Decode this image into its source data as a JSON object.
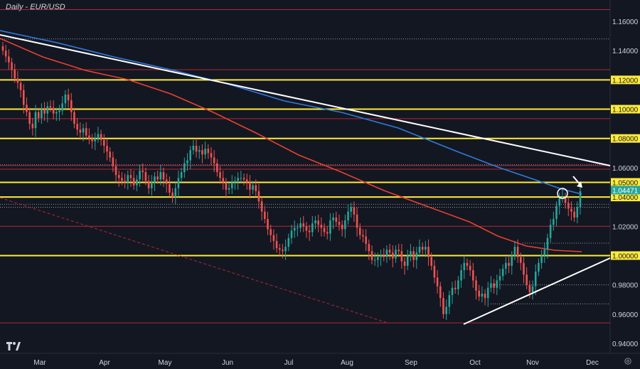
{
  "chart_data": {
    "type": "candlestick",
    "title": "Daily - EUR/USD",
    "y_ticks": [
      "1.16000",
      "1.14000",
      "1.12000",
      "1.10000",
      "1.08000",
      "1.06000",
      "1.05000",
      "1.04000",
      "1.02000",
      "1.00000",
      "0.98000",
      "0.96000",
      "0.94000"
    ],
    "highlighted_y_ticks": [
      "1.12000",
      "1.10000",
      "1.08000",
      "1.05000",
      "1.04000",
      "1.00000"
    ],
    "x_ticks": [
      "Mar",
      "Apr",
      "May",
      "Jun",
      "Jul",
      "Aug",
      "Sep",
      "Oct",
      "Nov",
      "Dec"
    ],
    "last_price": "1.04471",
    "ylim": [
      0.93,
      1.17
    ],
    "horizontal_levels": [
      {
        "y": 1.12,
        "style": "yellow"
      },
      {
        "y": 1.1,
        "style": "yellow"
      },
      {
        "y": 1.08,
        "style": "yellow"
      },
      {
        "y": 1.05,
        "style": "yellow"
      },
      {
        "y": 1.04,
        "style": "yellow"
      },
      {
        "y": 1.0,
        "style": "yellow"
      },
      {
        "y": 1.168,
        "style": "red"
      },
      {
        "y": 1.127,
        "style": "red"
      },
      {
        "y": 1.0935,
        "style": "red"
      },
      {
        "y": 1.0615,
        "style": "red"
      },
      {
        "y": 1.059,
        "style": "red"
      },
      {
        "y": 1.02,
        "style": "red"
      },
      {
        "y": 0.954,
        "style": "red"
      },
      {
        "y": 1.148,
        "style": "dotted"
      },
      {
        "y": 1.062,
        "style": "dotted"
      },
      {
        "y": 1.035,
        "style": "dotted"
      },
      {
        "y": 1.033,
        "style": "dotted"
      },
      {
        "y": 0.98,
        "style": "dotted"
      },
      {
        "y": 0.967,
        "style": "dotted"
      },
      {
        "y": 1.0085,
        "style": "dotted"
      }
    ],
    "trendlines": [
      {
        "name": "descending",
        "from": [
          "Feb-end",
          1.15
        ],
        "to": [
          "Dec-end",
          1.061
        ],
        "color": "#ffffff"
      },
      {
        "name": "ascending",
        "from": [
          "Sep-end",
          0.954
        ],
        "to": [
          "Dec-end",
          0.998
        ],
        "color": "#ffffff"
      },
      {
        "name": "ma-blue",
        "color": "#2962ff"
      },
      {
        "name": "ma-red",
        "color": "#ef5350"
      }
    ],
    "candles_close": [
      1.14,
      1.136,
      1.132,
      1.127,
      1.121,
      1.118,
      1.113,
      1.103,
      1.098,
      1.09,
      1.087,
      1.098,
      1.094,
      1.1,
      1.097,
      1.102,
      1.101,
      1.097,
      1.098,
      1.099,
      1.104,
      1.11,
      1.106,
      1.098,
      1.09,
      1.086,
      1.084,
      1.087,
      1.082,
      1.08,
      1.078,
      1.08,
      1.083,
      1.079,
      1.075,
      1.071,
      1.067,
      1.061,
      1.055,
      1.053,
      1.051,
      1.05,
      1.055,
      1.053,
      1.048,
      1.052,
      1.058,
      1.057,
      1.051,
      1.046,
      1.05,
      1.054,
      1.052,
      1.057,
      1.052,
      1.049,
      1.043,
      1.04,
      1.046,
      1.053,
      1.057,
      1.063,
      1.065,
      1.072,
      1.075,
      1.071,
      1.072,
      1.069,
      1.073,
      1.07,
      1.067,
      1.063,
      1.057,
      1.053,
      1.05,
      1.045,
      1.046,
      1.05,
      1.051,
      1.053,
      1.053,
      1.052,
      1.05,
      1.045,
      1.048,
      1.044,
      1.037,
      1.03,
      1.025,
      1.018,
      1.014,
      1.01,
      1.005,
      1.004,
      1.003,
      1.006,
      1.012,
      1.017,
      1.019,
      1.019,
      1.022,
      1.02,
      1.017,
      1.016,
      1.022,
      1.024,
      1.021,
      1.019,
      1.016,
      1.015,
      1.024,
      1.026,
      1.023,
      1.021,
      1.018,
      1.024,
      1.03,
      1.033,
      1.028,
      1.019,
      1.014,
      1.013,
      1.008,
      1.003,
      0.997,
      0.997,
      0.999,
      1.0,
      0.999,
      1.004,
      1.002,
      0.998,
      1.004,
      1.003,
      0.996,
      0.993,
      1.0,
      1.003,
      0.997,
      1.002,
      1.006,
      1.004,
      1.006,
      0.999,
      0.993,
      0.985,
      0.979,
      0.971,
      0.96,
      0.965,
      0.973,
      0.978,
      0.977,
      0.983,
      0.99,
      0.995,
      0.993,
      0.99,
      0.983,
      0.976,
      0.972,
      0.974,
      0.971,
      0.978,
      0.981,
      0.978,
      0.983,
      0.986,
      0.991,
      0.995,
      0.993,
      1.0,
      1.006,
      0.999,
      0.995,
      0.987,
      0.98,
      0.975,
      0.979,
      0.989,
      0.995,
      1.0,
      1.004,
      1.012,
      1.021,
      1.025,
      1.034,
      1.039,
      1.04,
      1.036,
      1.032,
      1.03,
      1.026,
      1.033,
      1.044
    ]
  }
}
